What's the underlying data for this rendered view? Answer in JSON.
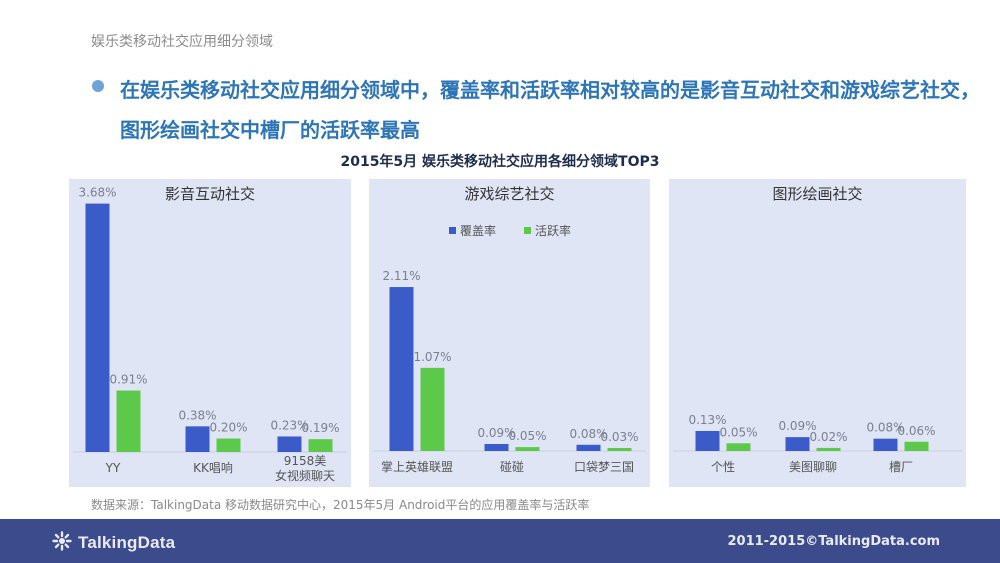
{
  "header": {
    "title": "娱乐类移动社交应用细分领域"
  },
  "headline": "在娱乐类移动社交应用细分领域中，覆盖率和活跃率相对较高的是影音互动社交和游戏综艺社交，图形绘画社交中槽厂的活跃率最高",
  "chart_title": "2015年5月 娱乐类移动社交应用各细分领域TOP3",
  "legend": {
    "coverage": "覆盖率",
    "active": "活跃率"
  },
  "colors": {
    "coverage": "#3b5bc9",
    "active": "#5cc94a",
    "panel_bg": "#dfe5f5",
    "footer_bg": "#3c4b8c",
    "headline": "#2e75b6"
  },
  "source": "数据来源：TalkingData 移动数据研究中心，2015年5月 Android平台的应用覆盖率与活跃率",
  "footer": {
    "logo_text": "TalkingData",
    "logo_icon": "talkingdata-logo-icon",
    "copyright": "2011-2015©TalkingData.com"
  },
  "chart_data": [
    {
      "type": "bar",
      "title": "影音互动社交",
      "categories": [
        "YY",
        "KK唱响",
        "9158美女视频聊天"
      ],
      "series": [
        {
          "name": "覆盖率",
          "values": [
            3.68,
            0.38,
            0.23
          ],
          "labels": [
            "3.68%",
            "0.38%",
            "0.23%"
          ]
        },
        {
          "name": "活跃率",
          "values": [
            0.91,
            0.2,
            0.19
          ],
          "labels": [
            "0.91%",
            "0.20%",
            "0.19%"
          ]
        }
      ],
      "legend": false
    },
    {
      "type": "bar",
      "title": "游戏综艺社交",
      "categories": [
        "掌上英雄联盟",
        "碰碰",
        "口袋梦三国"
      ],
      "series": [
        {
          "name": "覆盖率",
          "values": [
            2.11,
            0.09,
            0.08
          ],
          "labels": [
            "2.11%",
            "0.09%",
            "0.08%"
          ]
        },
        {
          "name": "活跃率",
          "values": [
            1.07,
            0.05,
            0.03
          ],
          "labels": [
            "1.07%",
            "0.05%",
            "0.03%"
          ]
        }
      ],
      "legend": true
    },
    {
      "type": "bar",
      "title": "图形绘画社交",
      "categories": [
        "个性",
        "美图聊聊",
        "槽厂"
      ],
      "series": [
        {
          "name": "覆盖率",
          "values": [
            0.13,
            0.09,
            0.08
          ],
          "labels": [
            "0.13%",
            "0.09%",
            "0.08%"
          ]
        },
        {
          "name": "活跃率",
          "values": [
            0.05,
            0.02,
            0.06
          ],
          "labels": [
            "0.05%",
            "0.02%",
            "0.06%"
          ]
        }
      ],
      "legend": false
    }
  ]
}
